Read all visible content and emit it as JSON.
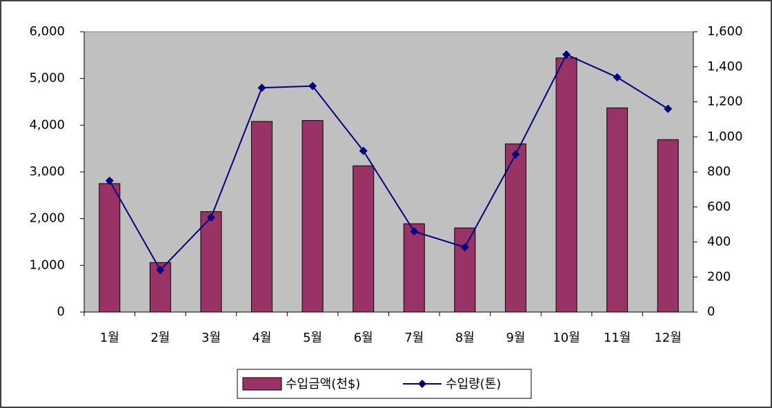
{
  "chart_data": {
    "type": "bar-line",
    "categories": [
      "1월",
      "2월",
      "3월",
      "4월",
      "5월",
      "6월",
      "7월",
      "8월",
      "9월",
      "10월",
      "11월",
      "12월"
    ],
    "series": [
      {
        "name": "수입금액(천$)",
        "type": "bar",
        "color": "#993366",
        "values": [
          2750,
          1060,
          2150,
          4080,
          4100,
          3130,
          1890,
          1800,
          3600,
          5440,
          4370,
          3690
        ]
      },
      {
        "name": "수입량(톤)",
        "type": "line",
        "axis": "y2",
        "color": "#000080",
        "values": [
          750,
          240,
          540,
          1280,
          1290,
          920,
          460,
          370,
          900,
          1470,
          1340,
          1160
        ]
      }
    ],
    "ylim": [
      0,
      6000
    ],
    "yticks": [
      0,
      {
        "value": 1000,
        "label": "1,000"
      },
      {
        "value": 2000,
        "label": "2,000"
      },
      {
        "value": 3000,
        "label": "3,000"
      },
      {
        "value": 4000,
        "label": "4,000"
      },
      {
        "value": 5000,
        "label": "5,000"
      },
      {
        "value": 6000,
        "label": "6,000"
      }
    ],
    "y2lim": [
      0,
      1600
    ],
    "y2ticks": [
      0,
      200,
      400,
      600,
      800,
      {
        "value": 1000,
        "label": "1,000"
      },
      {
        "value": 1200,
        "label": "1,200"
      },
      {
        "value": 1400,
        "label": "1,400"
      },
      {
        "value": 1600,
        "label": "1,600"
      }
    ],
    "plot_background": "#c0c0c0",
    "legend": "bottom"
  }
}
